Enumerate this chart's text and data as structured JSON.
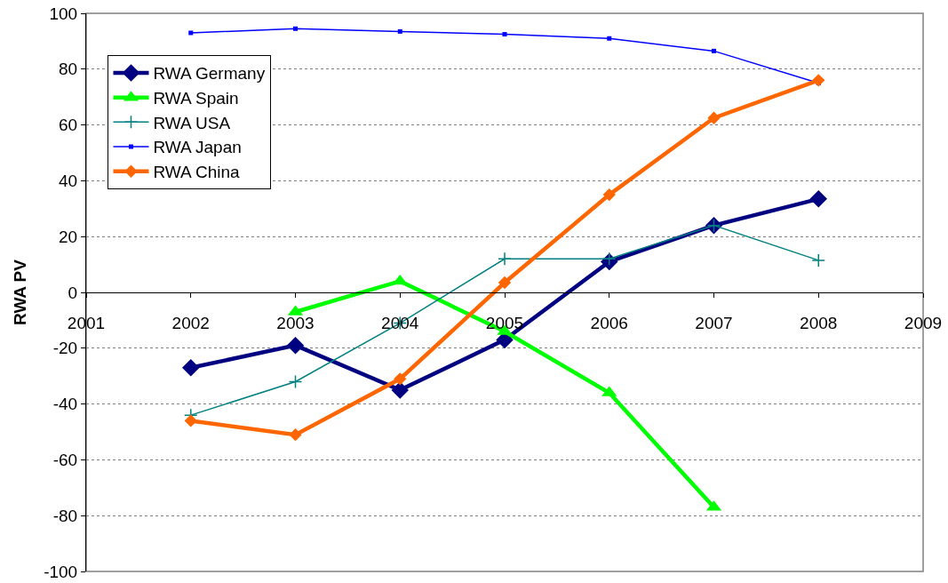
{
  "chart_data": {
    "type": "line",
    "ylabel": "RWA PV",
    "x": [
      2002,
      2003,
      2004,
      2005,
      2006,
      2007,
      2008
    ],
    "series": [
      {
        "name": "RWA Germany",
        "color": "#000080",
        "marker": "diamond",
        "values": [
          -27,
          -19,
          -35,
          -17,
          11,
          24,
          33.5
        ]
      },
      {
        "name": "RWA Spain",
        "color": "#00ff00",
        "marker": "triangle",
        "values": [
          null,
          -7,
          4,
          -14,
          -36,
          -77,
          null
        ]
      },
      {
        "name": "RWA USA",
        "color": "#008080",
        "marker": "cross",
        "values": [
          -44,
          -32,
          -11,
          12,
          12,
          24,
          11.5
        ]
      },
      {
        "name": "RWA Japan",
        "color": "#0000ff",
        "marker": "square",
        "values": [
          93,
          94.5,
          93.5,
          92.5,
          91,
          86.5,
          75
        ]
      },
      {
        "name": "RWA China",
        "color": "#ff6600",
        "marker": "diamond",
        "values": [
          -46,
          -51,
          -31,
          3.5,
          35,
          62.5,
          76
        ]
      }
    ],
    "xlim": [
      2001,
      2009
    ],
    "xticks": [
      2001,
      2002,
      2003,
      2004,
      2005,
      2006,
      2007,
      2008,
      2009
    ],
    "ylim": [
      -100,
      100
    ],
    "yticks": [
      -100,
      -80,
      -60,
      -40,
      -20,
      0,
      20,
      40,
      60,
      80,
      100
    ],
    "grid": "y",
    "legend": "top left",
    "line_style": "solid"
  }
}
